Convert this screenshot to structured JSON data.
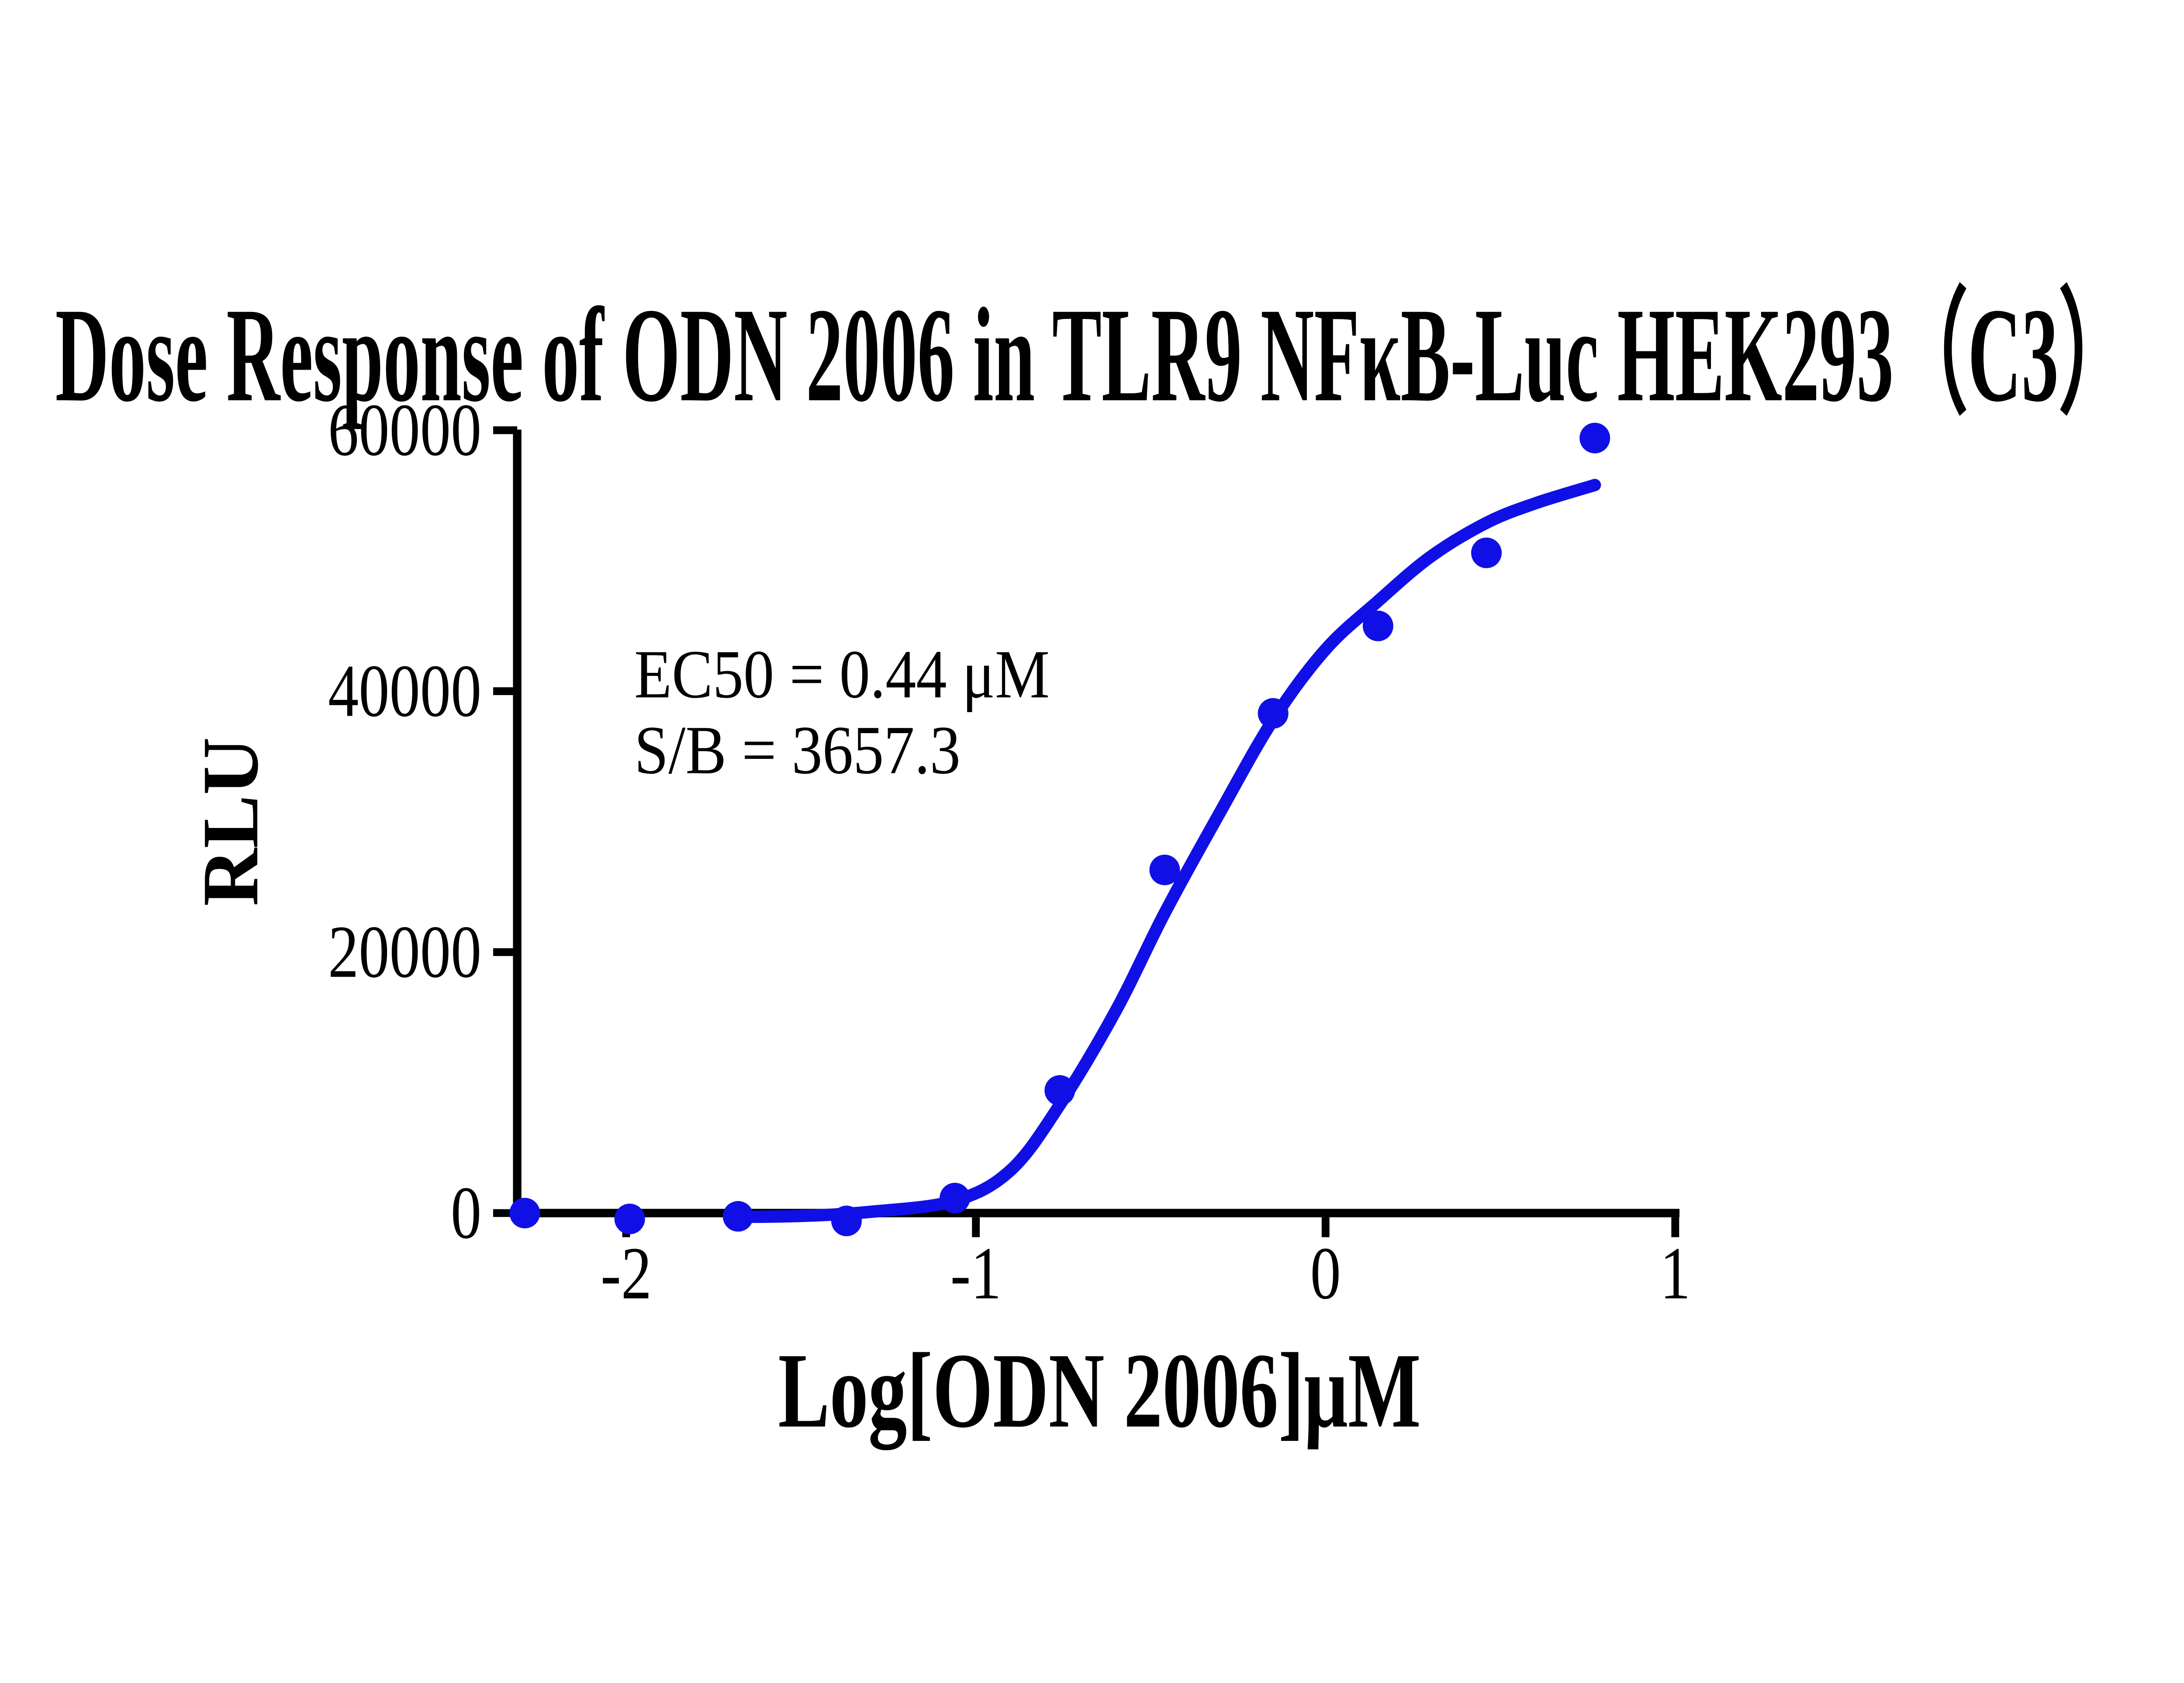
{
  "figure": {
    "title": "Dose Response of ODN 2006 in TLR9 NFκB-Luc HEK293（C3）",
    "annotation": {
      "ec50_label": "EC50 = 0.44 μM",
      "sb_label": "S/B = 3657.3"
    },
    "colors": {
      "curve": "#1010E6",
      "marker": "#1010E6",
      "axis": "#000000",
      "text": "#000000",
      "background": "#FFFFFF"
    }
  },
  "chart_data": {
    "type": "scatter",
    "title": "Dose Response of ODN 2006 in TLR9 NFκB-Luc HEK293（C3）",
    "xlabel": "Log[ODN 2006]μM",
    "ylabel": "RLU",
    "xlim": [
      -2.33,
      1.01
    ],
    "ylim": [
      0,
      60000
    ],
    "grid": false,
    "legend": "none",
    "x_ticks": [
      -2,
      -1,
      0,
      1
    ],
    "x_tick_labels": [
      "-2",
      "-1",
      "0",
      "1"
    ],
    "y_ticks": [
      0,
      20000,
      40000,
      60000
    ],
    "y_tick_labels": [
      "0",
      "20000",
      "40000",
      "60000"
    ],
    "ec50_um": 0.44,
    "sb_ratio": 3657.3,
    "series": [
      {
        "name": "ODN 2006",
        "marker": "circle",
        "points": [
          [
            -2.29,
            0
          ],
          [
            -1.99,
            -450
          ],
          [
            -1.68,
            -250
          ],
          [
            -1.37,
            -600
          ],
          [
            -1.06,
            1150
          ],
          [
            -0.76,
            9400
          ],
          [
            -0.46,
            26300
          ],
          [
            -0.15,
            38300
          ],
          [
            0.15,
            45000
          ],
          [
            0.46,
            50600
          ],
          [
            0.77,
            59400
          ]
        ]
      }
    ],
    "fit_curve": [
      [
        -1.7,
        -300
      ],
      [
        -1.5,
        -220
      ],
      [
        -1.3,
        100
      ],
      [
        -1.06,
        950
      ],
      [
        -0.9,
        3300
      ],
      [
        -0.76,
        8300
      ],
      [
        -0.6,
        15500
      ],
      [
        -0.46,
        23000
      ],
      [
        -0.3,
        30800
      ],
      [
        -0.15,
        37800
      ],
      [
        0.0,
        43200
      ],
      [
        0.15,
        46900
      ],
      [
        0.3,
        50300
      ],
      [
        0.46,
        52900
      ],
      [
        0.6,
        54400
      ],
      [
        0.77,
        55800
      ]
    ]
  }
}
